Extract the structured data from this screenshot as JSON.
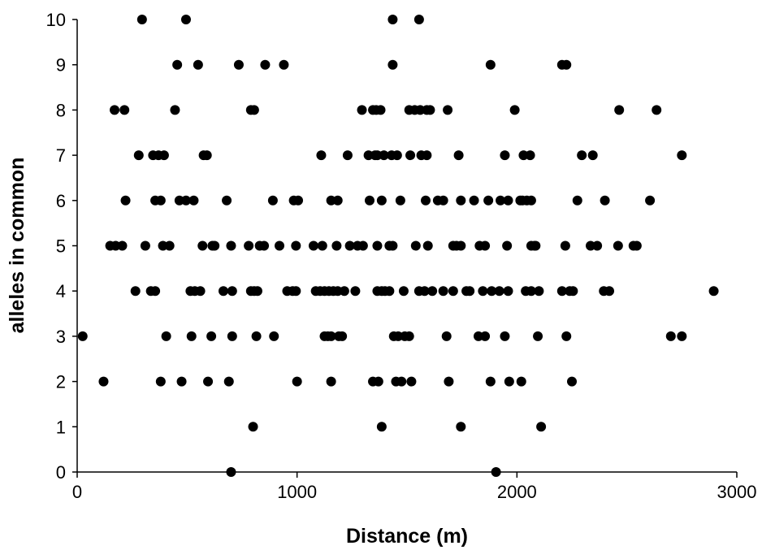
{
  "chart_data": {
    "type": "scatter",
    "title": "",
    "xlabel": "Distance (m)",
    "ylabel": "alleles in common",
    "xlim": [
      0,
      3000
    ],
    "ylim": [
      0,
      10
    ],
    "xticks": [
      0,
      1000,
      2000,
      3000
    ],
    "yticks": [
      0,
      1,
      2,
      3,
      4,
      5,
      6,
      7,
      8,
      9,
      10
    ],
    "xtick_labels": [
      "0",
      "1000",
      "2000",
      "3000"
    ],
    "ytick_labels": [
      "0",
      "1",
      "2",
      "3",
      "4",
      "5",
      "6",
      "7",
      "8",
      "9",
      "10"
    ],
    "grid": false,
    "legend": false,
    "marker_color": "#000000",
    "series": [
      {
        "points": [
          [
            700,
            0
          ],
          [
            1905,
            0
          ],
          [
            800,
            1
          ],
          [
            1385,
            1
          ],
          [
            1745,
            1
          ],
          [
            2110,
            1
          ],
          [
            120,
            2
          ],
          [
            380,
            2
          ],
          [
            475,
            2
          ],
          [
            595,
            2
          ],
          [
            690,
            2
          ],
          [
            1000,
            2
          ],
          [
            1155,
            2
          ],
          [
            1345,
            2
          ],
          [
            1370,
            2
          ],
          [
            1450,
            2
          ],
          [
            1475,
            2
          ],
          [
            1520,
            2
          ],
          [
            1690,
            2
          ],
          [
            1880,
            2
          ],
          [
            1965,
            2
          ],
          [
            2020,
            2
          ],
          [
            2250,
            2
          ],
          [
            25,
            3
          ],
          [
            405,
            3
          ],
          [
            520,
            3
          ],
          [
            610,
            3
          ],
          [
            705,
            3
          ],
          [
            815,
            3
          ],
          [
            895,
            3
          ],
          [
            1125,
            3
          ],
          [
            1140,
            3
          ],
          [
            1155,
            3
          ],
          [
            1190,
            3
          ],
          [
            1205,
            3
          ],
          [
            1440,
            3
          ],
          [
            1460,
            3
          ],
          [
            1490,
            3
          ],
          [
            1510,
            3
          ],
          [
            1680,
            3
          ],
          [
            1825,
            3
          ],
          [
            1855,
            3
          ],
          [
            1945,
            3
          ],
          [
            2095,
            3
          ],
          [
            2225,
            3
          ],
          [
            2700,
            3
          ],
          [
            2750,
            3
          ],
          [
            265,
            4
          ],
          [
            335,
            4
          ],
          [
            355,
            4
          ],
          [
            515,
            4
          ],
          [
            535,
            4
          ],
          [
            560,
            4
          ],
          [
            665,
            4
          ],
          [
            705,
            4
          ],
          [
            790,
            4
          ],
          [
            805,
            4
          ],
          [
            820,
            4
          ],
          [
            955,
            4
          ],
          [
            980,
            4
          ],
          [
            995,
            4
          ],
          [
            1085,
            4
          ],
          [
            1105,
            4
          ],
          [
            1125,
            4
          ],
          [
            1145,
            4
          ],
          [
            1165,
            4
          ],
          [
            1185,
            4
          ],
          [
            1215,
            4
          ],
          [
            1265,
            4
          ],
          [
            1365,
            4
          ],
          [
            1385,
            4
          ],
          [
            1400,
            4
          ],
          [
            1420,
            4
          ],
          [
            1485,
            4
          ],
          [
            1555,
            4
          ],
          [
            1580,
            4
          ],
          [
            1615,
            4
          ],
          [
            1665,
            4
          ],
          [
            1710,
            4
          ],
          [
            1770,
            4
          ],
          [
            1785,
            4
          ],
          [
            1845,
            4
          ],
          [
            1885,
            4
          ],
          [
            1920,
            4
          ],
          [
            1960,
            4
          ],
          [
            2040,
            4
          ],
          [
            2065,
            4
          ],
          [
            2100,
            4
          ],
          [
            2205,
            4
          ],
          [
            2240,
            4
          ],
          [
            2255,
            4
          ],
          [
            2395,
            4
          ],
          [
            2420,
            4
          ],
          [
            2895,
            4
          ],
          [
            150,
            5
          ],
          [
            175,
            5
          ],
          [
            205,
            5
          ],
          [
            310,
            5
          ],
          [
            390,
            5
          ],
          [
            420,
            5
          ],
          [
            570,
            5
          ],
          [
            615,
            5
          ],
          [
            625,
            5
          ],
          [
            700,
            5
          ],
          [
            780,
            5
          ],
          [
            830,
            5
          ],
          [
            850,
            5
          ],
          [
            920,
            5
          ],
          [
            995,
            5
          ],
          [
            1075,
            5
          ],
          [
            1115,
            5
          ],
          [
            1180,
            5
          ],
          [
            1240,
            5
          ],
          [
            1275,
            5
          ],
          [
            1300,
            5
          ],
          [
            1365,
            5
          ],
          [
            1420,
            5
          ],
          [
            1435,
            5
          ],
          [
            1540,
            5
          ],
          [
            1595,
            5
          ],
          [
            1710,
            5
          ],
          [
            1725,
            5
          ],
          [
            1745,
            5
          ],
          [
            1830,
            5
          ],
          [
            1855,
            5
          ],
          [
            1955,
            5
          ],
          [
            2065,
            5
          ],
          [
            2080,
            5
          ],
          [
            2085,
            5
          ],
          [
            2220,
            5
          ],
          [
            2335,
            5
          ],
          [
            2365,
            5
          ],
          [
            2460,
            5
          ],
          [
            2530,
            5
          ],
          [
            2545,
            5
          ],
          [
            220,
            6
          ],
          [
            355,
            6
          ],
          [
            380,
            6
          ],
          [
            465,
            6
          ],
          [
            495,
            6
          ],
          [
            530,
            6
          ],
          [
            680,
            6
          ],
          [
            890,
            6
          ],
          [
            985,
            6
          ],
          [
            1005,
            6
          ],
          [
            1155,
            6
          ],
          [
            1185,
            6
          ],
          [
            1330,
            6
          ],
          [
            1385,
            6
          ],
          [
            1470,
            6
          ],
          [
            1585,
            6
          ],
          [
            1640,
            6
          ],
          [
            1665,
            6
          ],
          [
            1745,
            6
          ],
          [
            1805,
            6
          ],
          [
            1870,
            6
          ],
          [
            1925,
            6
          ],
          [
            1960,
            6
          ],
          [
            2015,
            6
          ],
          [
            2025,
            6
          ],
          [
            2045,
            6
          ],
          [
            2065,
            6
          ],
          [
            2275,
            6
          ],
          [
            2400,
            6
          ],
          [
            2605,
            6
          ],
          [
            280,
            7
          ],
          [
            345,
            7
          ],
          [
            370,
            7
          ],
          [
            395,
            7
          ],
          [
            575,
            7
          ],
          [
            590,
            7
          ],
          [
            1110,
            7
          ],
          [
            1230,
            7
          ],
          [
            1325,
            7
          ],
          [
            1355,
            7
          ],
          [
            1365,
            7
          ],
          [
            1395,
            7
          ],
          [
            1430,
            7
          ],
          [
            1455,
            7
          ],
          [
            1515,
            7
          ],
          [
            1565,
            7
          ],
          [
            1590,
            7
          ],
          [
            1735,
            7
          ],
          [
            1945,
            7
          ],
          [
            2030,
            7
          ],
          [
            2060,
            7
          ],
          [
            2295,
            7
          ],
          [
            2345,
            7
          ],
          [
            2750,
            7
          ],
          [
            170,
            8
          ],
          [
            215,
            8
          ],
          [
            445,
            8
          ],
          [
            790,
            8
          ],
          [
            805,
            8
          ],
          [
            1295,
            8
          ],
          [
            1345,
            8
          ],
          [
            1360,
            8
          ],
          [
            1380,
            8
          ],
          [
            1510,
            8
          ],
          [
            1535,
            8
          ],
          [
            1560,
            8
          ],
          [
            1590,
            8
          ],
          [
            1605,
            8
          ],
          [
            1685,
            8
          ],
          [
            1990,
            8
          ],
          [
            2465,
            8
          ],
          [
            2635,
            8
          ],
          [
            455,
            9
          ],
          [
            550,
            9
          ],
          [
            735,
            9
          ],
          [
            855,
            9
          ],
          [
            940,
            9
          ],
          [
            1435,
            9
          ],
          [
            1880,
            9
          ],
          [
            2205,
            9
          ],
          [
            2225,
            9
          ],
          [
            295,
            10
          ],
          [
            495,
            10
          ],
          [
            1435,
            10
          ],
          [
            1555,
            10
          ]
        ]
      }
    ]
  }
}
